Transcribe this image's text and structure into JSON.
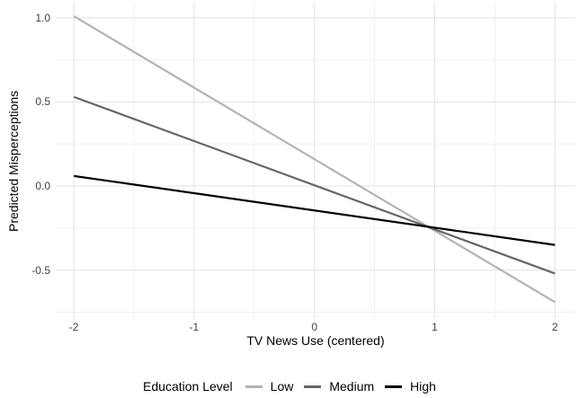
{
  "chart_data": {
    "type": "line",
    "title": "",
    "xlabel": "TV News Use (centered)",
    "ylabel": "Predicted Misperceptions",
    "legend_title": "Education Level",
    "legend_position": "bottom",
    "grid": true,
    "xlim": [
      -2.15,
      2.17
    ],
    "ylim": [
      -0.79,
      1.09
    ],
    "x_ticks": [
      {
        "value": -2,
        "label": "-2"
      },
      {
        "value": -1,
        "label": "-1"
      },
      {
        "value": 0,
        "label": "0"
      },
      {
        "value": 1,
        "label": "1"
      },
      {
        "value": 2,
        "label": "2"
      }
    ],
    "y_ticks": [
      {
        "value": 1.0,
        "label": "1.0"
      },
      {
        "value": 0.5,
        "label": "0.5"
      },
      {
        "value": 0.0,
        "label": "0.0"
      },
      {
        "value": -0.5,
        "label": "-0.5"
      }
    ],
    "x_minor": [
      -1.5,
      -0.5,
      0.5,
      1.5
    ],
    "y_minor": [
      0.75,
      0.25,
      -0.25,
      -0.75
    ],
    "series": [
      {
        "name": "Low",
        "color": "#b3b3b3",
        "x": [
          -2,
          2
        ],
        "y": [
          1.01,
          -0.69
        ]
      },
      {
        "name": "Medium",
        "color": "#666666",
        "x": [
          -2,
          2
        ],
        "y": [
          0.53,
          -0.52
        ]
      },
      {
        "name": "High",
        "color": "#000000",
        "x": [
          -2,
          2
        ],
        "y": [
          0.06,
          -0.35
        ]
      }
    ],
    "colors": {
      "background": "#ffffff",
      "grid_major": "#e5e5e5",
      "grid_minor": "#f0f0f0",
      "tick_text": "#404040",
      "title_text": "#000000"
    }
  }
}
